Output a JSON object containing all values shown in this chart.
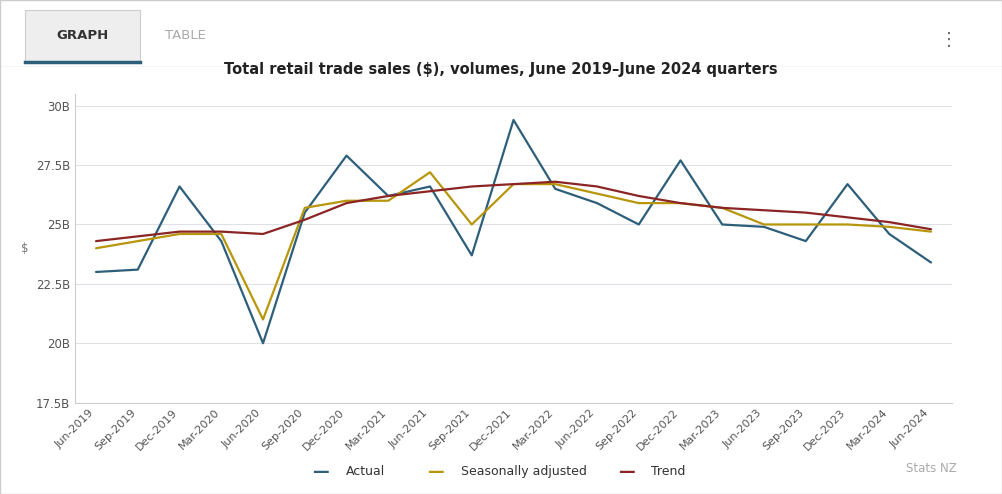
{
  "title": "Total retail trade sales ($), volumes, June 2019–June 2024 quarters",
  "ylabel": "$",
  "categories": [
    "Jun-2019",
    "Sep-2019",
    "Dec-2019",
    "Mar-2020",
    "Jun-2020",
    "Sep-2020",
    "Dec-2020",
    "Mar-2021",
    "Jun-2021",
    "Sep-2021",
    "Dec-2021",
    "Mar-2022",
    "Jun-2022",
    "Sep-2022",
    "Dec-2022",
    "Mar-2023",
    "Jun-2023",
    "Sep-2023",
    "Dec-2023",
    "Mar-2024",
    "Jun-2024"
  ],
  "actual": [
    23000,
    23100,
    26600,
    24300,
    20000,
    25500,
    27900,
    26200,
    26600,
    23700,
    29400,
    26500,
    25900,
    25000,
    27700,
    25000,
    24900,
    24300,
    26700,
    24600,
    23400
  ],
  "seasonally_adjusted": [
    24000,
    24300,
    24600,
    24600,
    21000,
    25700,
    26000,
    26000,
    27200,
    25000,
    26700,
    26700,
    26300,
    25900,
    25900,
    25700,
    25000,
    25000,
    25000,
    24900,
    24700
  ],
  "trend": [
    24300,
    24500,
    24700,
    24700,
    24600,
    25200,
    25900,
    26200,
    26400,
    26600,
    26700,
    26800,
    26600,
    26200,
    25900,
    25700,
    25600,
    25500,
    25300,
    25100,
    24800
  ],
  "actual_color": "#2d5f7a",
  "seasonally_adjusted_color": "#b8960c",
  "trend_color": "#8b2525",
  "ylim_min": 17500,
  "ylim_max": 30500,
  "yticks": [
    17500,
    20000,
    22500,
    25000,
    27500,
    30000
  ],
  "ytick_labels": [
    "17.5B",
    "20B",
    "22.5B",
    "25B",
    "27.5B",
    "30B"
  ],
  "background_color": "#ffffff",
  "plot_bg_color": "#ffffff",
  "grid_color": "#e0e0e8",
  "tab_active_bg": "#eeeeee",
  "tab_active_border": "#2d5f7a",
  "tab_inactive_text": "#aaaaaa",
  "tab_active_text": "#333333"
}
